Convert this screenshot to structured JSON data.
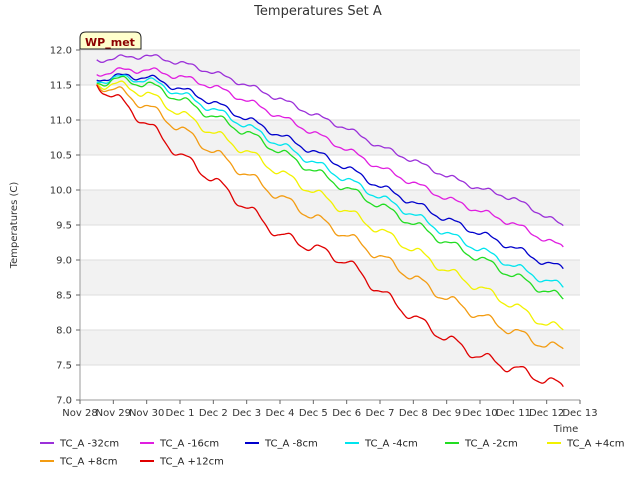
{
  "chart_data": {
    "type": "line",
    "title": "Temperatures Set A",
    "xlabel": "Time",
    "ylabel": "Temperatures (C)",
    "ylim": [
      7.0,
      12.0
    ],
    "yticks": [
      "7.0",
      "7.5",
      "8.0",
      "8.5",
      "9.0",
      "9.5",
      "10.0",
      "10.5",
      "11.0",
      "11.5",
      "12.0"
    ],
    "xtick_labels": [
      "Nov 28",
      "Nov 29",
      "Nov 30",
      "Dec 1",
      "Dec 2",
      "Dec 3",
      "Dec 4",
      "Dec 5",
      "Dec 6",
      "Dec 7",
      "Dec 8",
      "Dec 9",
      "Dec 10",
      "Dec 11",
      "Dec 12",
      "Dec 13"
    ],
    "x_start": "Nov 28",
    "x_end": "Dec 13",
    "badge": "WP_met",
    "legend_position": "bottom",
    "grid": true,
    "background_bands": [
      "#f2f2f2",
      "#ffffff"
    ],
    "series": [
      {
        "name": "TC_A -32cm",
        "color": "#9b30d9",
        "x": [
          "Nov 28.5",
          "Nov 29",
          "Nov 30",
          "Dec 1",
          "Dec 2",
          "Dec 3",
          "Dec 4",
          "Dec 5",
          "Dec 6",
          "Dec 7",
          "Dec 8",
          "Dec 9",
          "Dec 10",
          "Dec 11",
          "Dec 12",
          "Dec 12.5"
        ],
        "values": [
          11.85,
          11.88,
          11.92,
          11.82,
          11.68,
          11.5,
          11.3,
          11.08,
          10.88,
          10.62,
          10.42,
          10.2,
          10.02,
          9.88,
          9.62,
          9.48
        ]
      },
      {
        "name": "TC_A -16cm",
        "color": "#e01ee0",
        "x": [
          "Nov 28.5",
          "Nov 29",
          "Nov 30",
          "Dec 1",
          "Dec 2",
          "Dec 3",
          "Dec 4",
          "Dec 5",
          "Dec 6",
          "Dec 7",
          "Dec 8",
          "Dec 9",
          "Dec 10",
          "Dec 11",
          "Dec 12",
          "Dec 12.5"
        ],
        "values": [
          11.65,
          11.7,
          11.72,
          11.62,
          11.48,
          11.28,
          11.05,
          10.82,
          10.58,
          10.32,
          10.1,
          9.88,
          9.7,
          9.52,
          9.28,
          9.18
        ]
      },
      {
        "name": "TC_A -8cm",
        "color": "#0000cc",
        "x": [
          "Nov 28.5",
          "Nov 29",
          "Nov 30",
          "Dec 1",
          "Dec 2",
          "Dec 3",
          "Dec 4",
          "Dec 5",
          "Dec 6",
          "Dec 7",
          "Dec 8",
          "Dec 9",
          "Dec 10",
          "Dec 11",
          "Dec 12",
          "Dec 12.5"
        ],
        "values": [
          11.58,
          11.62,
          11.62,
          11.45,
          11.25,
          11.02,
          10.78,
          10.55,
          10.32,
          10.05,
          9.82,
          9.58,
          9.38,
          9.18,
          8.95,
          8.88
        ]
      },
      {
        "name": "TC_A -4cm",
        "color": "#00e5ee",
        "x": [
          "Nov 28.5",
          "Nov 29",
          "Nov 30",
          "Dec 1",
          "Dec 2",
          "Dec 3",
          "Dec 4",
          "Dec 5",
          "Dec 6",
          "Dec 7",
          "Dec 8",
          "Dec 9",
          "Dec 10",
          "Dec 11",
          "Dec 12",
          "Dec 12.5"
        ],
        "values": [
          11.55,
          11.6,
          11.58,
          11.38,
          11.15,
          10.92,
          10.65,
          10.4,
          10.15,
          9.9,
          9.65,
          9.38,
          9.15,
          8.92,
          8.7,
          8.62
        ]
      },
      {
        "name": "TC_A -2cm",
        "color": "#22dd22",
        "x": [
          "Nov 28.5",
          "Nov 29",
          "Nov 30",
          "Dec 1",
          "Dec 2",
          "Dec 3",
          "Dec 4",
          "Dec 5",
          "Dec 6",
          "Dec 7",
          "Dec 8",
          "Dec 9",
          "Dec 10",
          "Dec 11",
          "Dec 12",
          "Dec 12.5"
        ],
        "values": [
          11.52,
          11.58,
          11.52,
          11.3,
          11.05,
          10.82,
          10.55,
          10.28,
          10.02,
          9.78,
          9.52,
          9.25,
          9.02,
          8.78,
          8.55,
          8.45
        ]
      },
      {
        "name": "TC_A +4cm",
        "color": "#f2f200",
        "x": [
          "Nov 28.5",
          "Nov 29",
          "Nov 30",
          "Dec 1",
          "Dec 2",
          "Dec 3",
          "Dec 4",
          "Dec 5",
          "Dec 6",
          "Dec 7",
          "Dec 8",
          "Dec 9",
          "Dec 10",
          "Dec 11",
          "Dec 12",
          "Dec 12.5"
        ],
        "values": [
          11.5,
          11.52,
          11.38,
          11.1,
          10.82,
          10.55,
          10.25,
          9.98,
          9.7,
          9.42,
          9.15,
          8.85,
          8.6,
          8.35,
          8.08,
          8.0
        ]
      },
      {
        "name": "TC_A +8cm",
        "color": "#f39c12",
        "x": [
          "Nov 28.5",
          "Nov 29",
          "Nov 30",
          "Dec 1",
          "Dec 2",
          "Dec 3",
          "Dec 4",
          "Dec 5",
          "Dec 6",
          "Dec 7",
          "Dec 8",
          "Dec 9",
          "Dec 10",
          "Dec 11",
          "Dec 12",
          "Dec 12.5"
        ],
        "values": [
          11.5,
          11.45,
          11.2,
          10.88,
          10.55,
          10.22,
          9.9,
          9.62,
          9.35,
          9.05,
          8.75,
          8.45,
          8.2,
          7.98,
          7.78,
          7.72
        ]
      },
      {
        "name": "TC_A +12cm",
        "color": "#e00000",
        "x": [
          "Nov 28.5",
          "Nov 29",
          "Nov 30",
          "Dec 1",
          "Dec 2",
          "Dec 3",
          "Dec 4",
          "Dec 5",
          "Dec 6",
          "Dec 7",
          "Dec 8",
          "Dec 9",
          "Dec 10",
          "Dec 11",
          "Dec 12",
          "Dec 12.5"
        ],
        "values": [
          11.5,
          11.35,
          10.95,
          10.5,
          10.15,
          9.75,
          9.35,
          9.18,
          8.98,
          8.55,
          8.18,
          7.88,
          7.62,
          7.45,
          7.28,
          7.18
        ]
      }
    ]
  }
}
